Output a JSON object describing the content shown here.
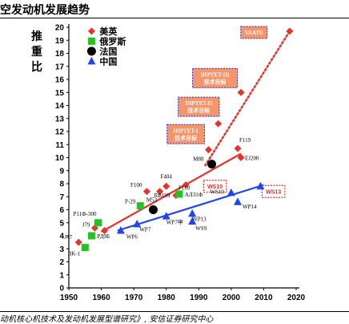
{
  "header": {
    "title": "空发动机发展趋势"
  },
  "footer": {
    "source": "动机核心机技术及发动机发展型谱研究》, 安信证券研究中心"
  },
  "colors": {
    "us": "#e8322b",
    "ru": "#22c322",
    "fr": "#000000",
    "cn": "#1f44f0",
    "box": "#f4956a",
    "box_border": "#2b2bd0"
  },
  "chart_data": {
    "type": "scatter",
    "ylabel": "推重比",
    "xlim": [
      1950,
      2020
    ],
    "ylim": [
      0,
      20
    ],
    "xticks": [
      1950,
      1960,
      1970,
      1980,
      1990,
      2000,
      2010,
      2020
    ],
    "yticks": [
      0,
      1,
      2,
      3,
      4,
      5,
      6,
      7,
      8,
      9,
      10,
      11,
      12,
      13,
      14,
      15,
      16,
      17,
      18,
      19,
      20
    ],
    "legend_position": "top-left",
    "series": [
      {
        "key": "us",
        "name": "美英",
        "marker": "diamond",
        "color_key": "us",
        "points": [
          {
            "x": 1953,
            "y": 3.5,
            "label": "J47"
          },
          {
            "x": 1958,
            "y": 4.6,
            "label": "J79"
          },
          {
            "x": 1961,
            "y": 4.4,
            "label": ""
          },
          {
            "x": 1974,
            "y": 7.4,
            "label": "F100"
          },
          {
            "x": 1978,
            "y": 7.4,
            "label": "RB199"
          },
          {
            "x": 1980,
            "y": 7.8,
            "label": "F404"
          },
          {
            "x": 1983,
            "y": 7.1,
            "label": ""
          },
          {
            "x": 1986,
            "y": 7.9,
            "label": "F110"
          },
          {
            "x": 1993,
            "y": 10.6,
            "label": ""
          },
          {
            "x": 1996,
            "y": 12.6,
            "label": ""
          },
          {
            "x": 2002,
            "y": 10.7,
            "label": "F119"
          },
          {
            "x": 2003,
            "y": 10.0,
            "label": "EJ200"
          },
          {
            "x": 2003,
            "y": 15.0,
            "label": ""
          },
          {
            "x": 2018,
            "y": 19.7,
            "label": ""
          }
        ]
      },
      {
        "key": "ru",
        "name": "俄罗斯",
        "marker": "square",
        "color_key": "ru",
        "points": [
          {
            "x": 1955,
            "y": 3.1,
            "label": "BK-1"
          },
          {
            "x": 1957,
            "y": 4.0,
            "label": "РД9Б"
          },
          {
            "x": 1959,
            "y": 5.0,
            "label": "P11Ф-300"
          },
          {
            "x": 1972,
            "y": 6.3,
            "label": "P-29"
          },
          {
            "x": 1984,
            "y": 7.2,
            "label": "АЛ31Ф"
          }
        ]
      },
      {
        "key": "fr",
        "name": "法国",
        "marker": "circle",
        "color_key": "fr",
        "points": [
          {
            "x": 1976,
            "y": 6.0,
            "label": "M53"
          },
          {
            "x": 1994,
            "y": 9.5,
            "label": "M88"
          }
        ]
      },
      {
        "key": "cn",
        "name": "中国",
        "marker": "triangle",
        "color_key": "cn",
        "points": [
          {
            "x": 1966,
            "y": 4.4,
            "label": "WP6"
          },
          {
            "x": 1971,
            "y": 4.9,
            "label": "WP7"
          },
          {
            "x": 1980,
            "y": 5.5,
            "label": "WP7甲"
          },
          {
            "x": 1988,
            "y": 5.7,
            "label": "WP13"
          },
          {
            "x": 1988,
            "y": 5.1,
            "label": "WS9"
          },
          {
            "x": 2000,
            "y": 7.3,
            "label": "WS10"
          },
          {
            "x": 2002,
            "y": 6.6,
            "label": "WP14"
          },
          {
            "x": 2009,
            "y": 7.8,
            "label": ""
          }
        ]
      }
    ],
    "trendlines": [
      {
        "color_key": "us",
        "style": "solid",
        "from": [
          1960,
          4.3
        ],
        "to": [
          2003,
          10.3
        ]
      },
      {
        "color_key": "us",
        "style": "dotted",
        "from": [
          1992,
          9.4
        ],
        "to": [
          2018,
          19.7
        ]
      },
      {
        "color_key": "cn",
        "style": "solid",
        "from": [
          1965,
          4.4
        ],
        "to": [
          2010,
          7.9
        ]
      }
    ],
    "annotations": [
      {
        "text_lines": [
          "IHPTET-I",
          "技术目标"
        ],
        "style": "box",
        "x": 1986,
        "y": 11.8
      },
      {
        "text_lines": [
          "IHPTET-II",
          "技术目标"
        ],
        "style": "box",
        "x": 1990,
        "y": 13.9
      },
      {
        "text_lines": [
          "IHPTET-III",
          "技术目标"
        ],
        "style": "box",
        "x": 1995,
        "y": 16.1
      },
      {
        "text_lines": [
          "VAATE"
        ],
        "style": "box",
        "x": 2007,
        "y": 19.6
      },
      {
        "text_lines": [
          "WS10"
        ],
        "style": "dashed",
        "x": 1995,
        "y": 7.8
      },
      {
        "text_lines": [
          "WS13"
        ],
        "style": "dashed",
        "x": 2013,
        "y": 7.4
      }
    ]
  }
}
